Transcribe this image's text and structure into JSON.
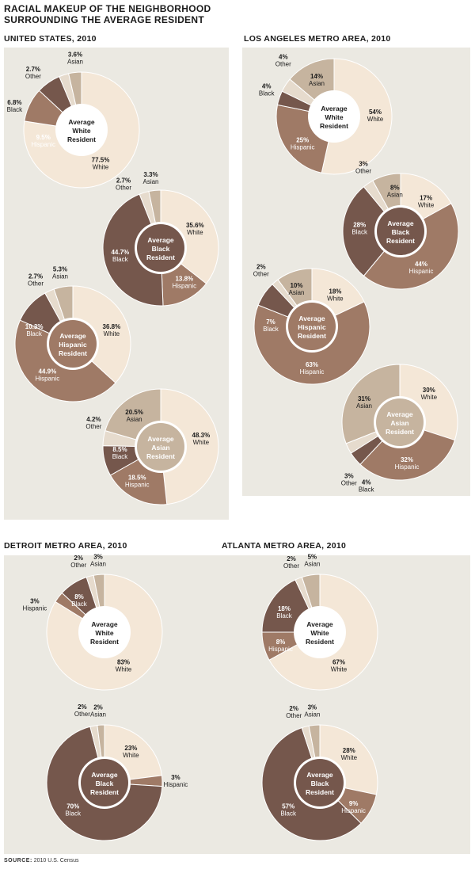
{
  "title_line1": "RACIAL MAKEUP OF THE NEIGHBORHOOD",
  "title_line2": "SURROUNDING THE AVERAGE RESIDENT",
  "source_label": "SOURCE:",
  "source_text": "2010 U.S. Census",
  "colors": {
    "white": "#f4e7d7",
    "asian": "#c6b49f",
    "other": "#e6dbcd",
    "black": "#75574c",
    "hispanic": "#9f7a66",
    "center_light": "#ffffff",
    "center_dark": "#75574c",
    "panel_bg": "#ebe9e2"
  },
  "panels": [
    {
      "title": "UNITED STATES, 2010",
      "charts": [
        {
          "center_lines": [
            "Average",
            "White",
            "Resident"
          ],
          "center_fill": "light",
          "slices": [
            {
              "category": "White",
              "value": 77.5,
              "label": "77.5%"
            },
            {
              "category": "Hispanic",
              "value": 9.5,
              "label": "9.5%"
            },
            {
              "category": "Black",
              "value": 6.8,
              "label": "6.8%"
            },
            {
              "category": "Other",
              "value": 2.7,
              "label": "2.7%"
            },
            {
              "category": "Asian",
              "value": 3.6,
              "label": "3.6%"
            }
          ]
        },
        {
          "center_lines": [
            "Average",
            "Black",
            "Resident"
          ],
          "center_fill": "dark",
          "slices": [
            {
              "category": "White",
              "value": 35.6,
              "label": "35.6%"
            },
            {
              "category": "Hispanic",
              "value": 13.8,
              "label": "13.8%"
            },
            {
              "category": "Black",
              "value": 44.7,
              "label": "44.7%"
            },
            {
              "category": "Other",
              "value": 2.7,
              "label": "2.7%"
            },
            {
              "category": "Asian",
              "value": 3.3,
              "label": "3.3%"
            }
          ]
        },
        {
          "center_lines": [
            "Average",
            "Hispanic",
            "Resident"
          ],
          "center_fill": "hisp",
          "slices": [
            {
              "category": "White",
              "value": 36.8,
              "label": "36.8%"
            },
            {
              "category": "Hispanic",
              "value": 44.9,
              "label": "44.9%"
            },
            {
              "category": "Black",
              "value": 10.3,
              "label": "10.3%"
            },
            {
              "category": "Other",
              "value": 2.7,
              "label": "2.7%"
            },
            {
              "category": "Asian",
              "value": 5.3,
              "label": "5.3%"
            }
          ]
        },
        {
          "center_lines": [
            "Average",
            "Asian",
            "Resident"
          ],
          "center_fill": "asian",
          "slices": [
            {
              "category": "White",
              "value": 48.3,
              "label": "48.3%"
            },
            {
              "category": "Hispanic",
              "value": 18.5,
              "label": "18.5%"
            },
            {
              "category": "Black",
              "value": 8.5,
              "label": "8.5%"
            },
            {
              "category": "Other",
              "value": 4.2,
              "label": "4.2%"
            },
            {
              "category": "Asian",
              "value": 20.5,
              "label": "20.5%"
            }
          ]
        }
      ]
    },
    {
      "title": "LOS ANGELES METRO AREA, 2010",
      "charts": [
        {
          "center_lines": [
            "Average",
            "White",
            "Resident"
          ],
          "center_fill": "light",
          "slices": [
            {
              "category": "White",
              "value": 54,
              "label": "54%"
            },
            {
              "category": "Hispanic",
              "value": 25,
              "label": "25%"
            },
            {
              "category": "Black",
              "value": 4,
              "label": "4%"
            },
            {
              "category": "Other",
              "value": 4,
              "label": "4%"
            },
            {
              "category": "Asian",
              "value": 14,
              "label": "14%"
            }
          ]
        },
        {
          "center_lines": [
            "Average",
            "Black",
            "Resident"
          ],
          "center_fill": "dark",
          "slices": [
            {
              "category": "White",
              "value": 17,
              "label": "17%"
            },
            {
              "category": "Hispanic",
              "value": 44,
              "label": "44%"
            },
            {
              "category": "Black",
              "value": 28,
              "label": "28%"
            },
            {
              "category": "Other",
              "value": 3,
              "label": "3%"
            },
            {
              "category": "Asian",
              "value": 8,
              "label": "8%"
            }
          ]
        },
        {
          "center_lines": [
            "Average",
            "Hispanic",
            "Resident"
          ],
          "center_fill": "hisp",
          "slices": [
            {
              "category": "White",
              "value": 18,
              "label": "18%"
            },
            {
              "category": "Hispanic",
              "value": 63,
              "label": "63%"
            },
            {
              "category": "Black",
              "value": 7,
              "label": "7%"
            },
            {
              "category": "Other",
              "value": 2,
              "label": "2%"
            },
            {
              "category": "Asian",
              "value": 10,
              "label": "10%"
            }
          ]
        },
        {
          "center_lines": [
            "Average",
            "Asian",
            "Resident"
          ],
          "center_fill": "asian",
          "slices": [
            {
              "category": "White",
              "value": 30,
              "label": "30%"
            },
            {
              "category": "Hispanic",
              "value": 32,
              "label": "32%"
            },
            {
              "category": "Black",
              "value": 4,
              "label": "4%"
            },
            {
              "category": "Other",
              "value": 3,
              "label": "3%"
            },
            {
              "category": "Asian",
              "value": 31,
              "label": "31%"
            }
          ]
        }
      ]
    },
    {
      "title": "DETROIT METRO AREA, 2010",
      "charts": [
        {
          "center_lines": [
            "Average",
            "White",
            "Resident"
          ],
          "center_fill": "light",
          "slices": [
            {
              "category": "White",
              "value": 83,
              "label": "83%"
            },
            {
              "category": "Hispanic",
              "value": 3,
              "label": "3%"
            },
            {
              "category": "Black",
              "value": 8,
              "label": "8%"
            },
            {
              "category": "Other",
              "value": 2,
              "label": "2%"
            },
            {
              "category": "Asian",
              "value": 3,
              "label": "3%"
            }
          ]
        },
        {
          "center_lines": [
            "Average",
            "Black",
            "Resident"
          ],
          "center_fill": "dark",
          "slices": [
            {
              "category": "White",
              "value": 23,
              "label": "23%"
            },
            {
              "category": "Hispanic",
              "value": 3,
              "label": "3%"
            },
            {
              "category": "Black",
              "value": 70,
              "label": "70%"
            },
            {
              "category": "Other",
              "value": 2,
              "label": "2%"
            },
            {
              "category": "Asian",
              "value": 2,
              "label": "2%"
            }
          ]
        }
      ]
    },
    {
      "title": "ATLANTA METRO AREA, 2010",
      "charts": [
        {
          "center_lines": [
            "Average",
            "White",
            "Resident"
          ],
          "center_fill": "light",
          "slices": [
            {
              "category": "White",
              "value": 67,
              "label": "67%"
            },
            {
              "category": "Hispanic",
              "value": 8,
              "label": "8%"
            },
            {
              "category": "Black",
              "value": 18,
              "label": "18%"
            },
            {
              "category": "Other",
              "value": 2,
              "label": "2%"
            },
            {
              "category": "Asian",
              "value": 5,
              "label": "5%"
            }
          ]
        },
        {
          "center_lines": [
            "Average",
            "Black",
            "Resident"
          ],
          "center_fill": "dark",
          "slices": [
            {
              "category": "White",
              "value": 28,
              "label": "28%"
            },
            {
              "category": "Hispanic",
              "value": 9,
              "label": "9%"
            },
            {
              "category": "Black",
              "value": 57,
              "label": "57%"
            },
            {
              "category": "Other",
              "value": 2,
              "label": "2%"
            },
            {
              "category": "Asian",
              "value": 3,
              "label": "3%"
            }
          ]
        }
      ]
    }
  ],
  "chart_data": [
    {
      "type": "pie",
      "title": "UNITED STATES, 2010 — Average White Resident",
      "categories": [
        "White",
        "Hispanic",
        "Black",
        "Other",
        "Asian"
      ],
      "values": [
        77.5,
        9.5,
        6.8,
        2.7,
        3.6
      ]
    },
    {
      "type": "pie",
      "title": "UNITED STATES, 2010 — Average Black Resident",
      "categories": [
        "White",
        "Hispanic",
        "Black",
        "Other",
        "Asian"
      ],
      "values": [
        35.6,
        13.8,
        44.7,
        2.7,
        3.3
      ]
    },
    {
      "type": "pie",
      "title": "UNITED STATES, 2010 — Average Hispanic Resident",
      "categories": [
        "White",
        "Hispanic",
        "Black",
        "Other",
        "Asian"
      ],
      "values": [
        36.8,
        44.9,
        10.3,
        2.7,
        5.3
      ]
    },
    {
      "type": "pie",
      "title": "UNITED STATES, 2010 — Average Asian Resident",
      "categories": [
        "White",
        "Hispanic",
        "Black",
        "Other",
        "Asian"
      ],
      "values": [
        48.3,
        18.5,
        8.5,
        4.2,
        20.5
      ]
    },
    {
      "type": "pie",
      "title": "LOS ANGELES METRO AREA, 2010 — Average White Resident",
      "categories": [
        "White",
        "Hispanic",
        "Black",
        "Other",
        "Asian"
      ],
      "values": [
        54,
        25,
        4,
        4,
        14
      ]
    },
    {
      "type": "pie",
      "title": "LOS ANGELES METRO AREA, 2010 — Average Black Resident",
      "categories": [
        "White",
        "Hispanic",
        "Black",
        "Other",
        "Asian"
      ],
      "values": [
        17,
        44,
        28,
        3,
        8
      ]
    },
    {
      "type": "pie",
      "title": "LOS ANGELES METRO AREA, 2010 — Average Hispanic Resident",
      "categories": [
        "White",
        "Hispanic",
        "Black",
        "Other",
        "Asian"
      ],
      "values": [
        18,
        63,
        7,
        2,
        10
      ]
    },
    {
      "type": "pie",
      "title": "LOS ANGELES METRO AREA, 2010 — Average Asian Resident",
      "categories": [
        "White",
        "Hispanic",
        "Black",
        "Other",
        "Asian"
      ],
      "values": [
        30,
        32,
        4,
        3,
        31
      ]
    },
    {
      "type": "pie",
      "title": "DETROIT METRO AREA, 2010 — Average White Resident",
      "categories": [
        "White",
        "Hispanic",
        "Black",
        "Other",
        "Asian"
      ],
      "values": [
        83,
        3,
        8,
        2,
        3
      ]
    },
    {
      "type": "pie",
      "title": "DETROIT METRO AREA, 2010 — Average Black Resident",
      "categories": [
        "White",
        "Hispanic",
        "Black",
        "Other",
        "Asian"
      ],
      "values": [
        23,
        3,
        70,
        2,
        2
      ]
    },
    {
      "type": "pie",
      "title": "ATLANTA METRO AREA, 2010 — Average White Resident",
      "categories": [
        "White",
        "Hispanic",
        "Black",
        "Other",
        "Asian"
      ],
      "values": [
        67,
        8,
        18,
        2,
        5
      ]
    },
    {
      "type": "pie",
      "title": "ATLANTA METRO AREA, 2010 — Average Black Resident",
      "categories": [
        "White",
        "Hispanic",
        "Black",
        "Other",
        "Asian"
      ],
      "values": [
        28,
        9,
        57,
        2,
        3
      ]
    }
  ]
}
